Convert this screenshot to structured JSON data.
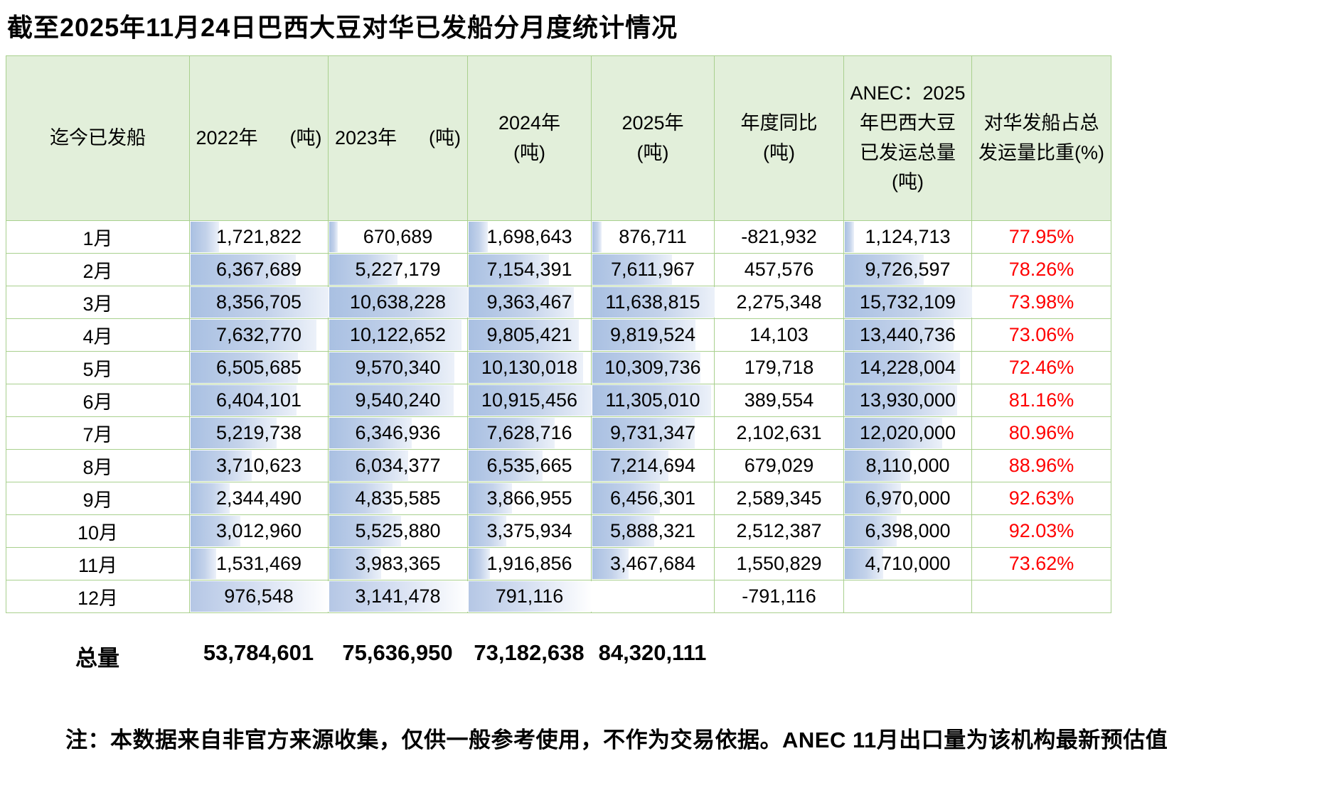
{
  "title": "截至2025年11月24日巴西大豆对华已发船分月度统计情况",
  "table": {
    "headers": {
      "col1": "迄今已发船",
      "col2": "2022年      (吨)",
      "col3": "2023年      (吨)",
      "col4": "2024年\n(吨)",
      "col5": "2025年\n(吨)",
      "col6": "年度同比\n(吨)",
      "col7": "ANEC：2025\n年巴西大豆\n已发运总量\n(吨)",
      "col8": "对华发船占总\n发运量比重(%)"
    },
    "rows": [
      {
        "month": "1月",
        "y2022": "1,721,822",
        "y2023": "670,689",
        "y2024": "1,698,643",
        "y2025": "876,711",
        "yoy": "-821,932",
        "anec": "1,124,713",
        "share": "77.95%"
      },
      {
        "month": "2月",
        "y2022": "6,367,689",
        "y2023": "5,227,179",
        "y2024": "7,154,391",
        "y2025": "7,611,967",
        "yoy": "457,576",
        "anec": "9,726,597",
        "share": "78.26%"
      },
      {
        "month": "3月",
        "y2022": "8,356,705",
        "y2023": "10,638,228",
        "y2024": "9,363,467",
        "y2025": "11,638,815",
        "yoy": "2,275,348",
        "anec": "15,732,109",
        "share": "73.98%"
      },
      {
        "month": "4月",
        "y2022": "7,632,770",
        "y2023": "10,122,652",
        "y2024": "9,805,421",
        "y2025": "9,819,524",
        "yoy": "14,103",
        "anec": "13,440,736",
        "share": "73.06%"
      },
      {
        "month": "5月",
        "y2022": "6,505,685",
        "y2023": "9,570,340",
        "y2024": "10,130,018",
        "y2025": "10,309,736",
        "yoy": "179,718",
        "anec": "14,228,004",
        "share": "72.46%"
      },
      {
        "month": "6月",
        "y2022": "6,404,101",
        "y2023": "9,540,240",
        "y2024": "10,915,456",
        "y2025": "11,305,010",
        "yoy": "389,554",
        "anec": "13,930,000",
        "share": "81.16%"
      },
      {
        "month": "7月",
        "y2022": "5,219,738",
        "y2023": "6,346,936",
        "y2024": "7,628,716",
        "y2025": "9,731,347",
        "yoy": "2,102,631",
        "anec": "12,020,000",
        "share": "80.96%"
      },
      {
        "month": "8月",
        "y2022": "3,710,623",
        "y2023": "6,034,377",
        "y2024": "6,535,665",
        "y2025": "7,214,694",
        "yoy": "679,029",
        "anec": "8,110,000",
        "share": "88.96%"
      },
      {
        "month": "9月",
        "y2022": "2,344,490",
        "y2023": "4,835,585",
        "y2024": "3,866,955",
        "y2025": "6,456,301",
        "yoy": "2,589,345",
        "anec": "6,970,000",
        "share": "92.63%"
      },
      {
        "month": "10月",
        "y2022": "3,012,960",
        "y2023": "5,525,880",
        "y2024": "3,375,934",
        "y2025": "5,888,321",
        "yoy": "2,512,387",
        "anec": "6,398,000",
        "share": "92.03%"
      },
      {
        "month": "11月",
        "y2022": "1,531,469",
        "y2023": "3,983,365",
        "y2024": "1,916,856",
        "y2025": "3,467,684",
        "yoy": "1,550,829",
        "anec": "4,710,000",
        "share": "73.62%"
      },
      {
        "month": "12月",
        "y2022": "976,548",
        "y2023": "3,141,478",
        "y2024": "791,116",
        "y2025": "",
        "yoy": "-791,116",
        "anec": "",
        "share": ""
      }
    ],
    "bars": {
      "y2022": [
        20.6,
        76.2,
        100,
        91.3,
        77.8,
        76.6,
        62.5,
        44.4,
        28.1,
        36.1,
        18.3,
        100
      ],
      "y2023": [
        6.3,
        49.1,
        100,
        95.2,
        90,
        89.7,
        59.7,
        56.7,
        45.5,
        51.9,
        37.4,
        100
      ],
      "y2024": [
        15.6,
        65.5,
        85.8,
        89.8,
        92.8,
        100,
        69.9,
        59.9,
        35.4,
        30.9,
        17.6,
        100
      ],
      "y2025": [
        7.5,
        65.4,
        100,
        84.4,
        88.6,
        97.1,
        83.6,
        62,
        55.5,
        50.6,
        29.8,
        0
      ],
      "anec": [
        7.1,
        61.8,
        100,
        85.4,
        90.4,
        88.5,
        76.4,
        51.6,
        44.3,
        40.7,
        29.9,
        0
      ]
    }
  },
  "totals": {
    "label": "总量",
    "y2022": "53,784,601",
    "y2023": "75,636,950",
    "y2024": "73,182,638",
    "y2025": "84,320,111"
  },
  "note": "注：本数据来自非官方来源收集，仅供一般参考使用，不作为交易依据。ANEC 11月出口量为该机构最新预估值",
  "colors": {
    "header_bg": "#e2efda",
    "grid_border": "#a9d08e",
    "percent_text": "#ff0000",
    "databar_start": "#a9c0e2"
  }
}
